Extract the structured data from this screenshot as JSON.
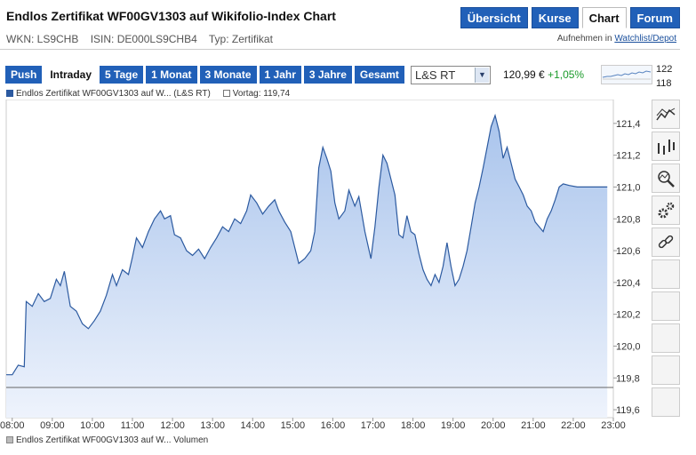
{
  "header": {
    "title": "Endlos Zertifikat WF00GV1303 auf Wikifolio-Index Chart",
    "wkn": "WKN: LS9CHB",
    "isin": "ISIN: DE000LS9CHB4",
    "typ": "Typ: Zertifikat",
    "tabs": [
      "Übersicht",
      "Kurse",
      "Chart",
      "Forum"
    ],
    "active_tab": "Chart",
    "watch_prefix": "Aufnehmen in",
    "watch_link": "Watchlist/Depot"
  },
  "toolbar": {
    "buttons": [
      "Push",
      "Intraday",
      "5 Tage",
      "1 Monat",
      "3 Monate",
      "1 Jahr",
      "3 Jahre",
      "Gesamt"
    ],
    "active": "Intraday",
    "exchange": "L&S RT",
    "price": "120,99 €",
    "change": "+1,05%",
    "mini_high": "122",
    "mini_low": "118"
  },
  "legend": {
    "series": "Endlos Zertifikat WF00GV1303 auf W... (L&S RT)",
    "prev": "Vortag: 119,74",
    "volume": "Endlos Zertifikat WF00GV1303 auf W... Volumen"
  },
  "colors": {
    "accent": "#2160b8",
    "line": "#2c5aa0",
    "fill_top": "#a9c4ec",
    "fill_bottom": "#eef3fc",
    "positive": "#1a9a2a"
  },
  "icons": [
    "line-chart-icon",
    "ohlc-chart-icon",
    "magnifier-icon",
    "settings-icon",
    "link-icon"
  ],
  "chart_data": {
    "type": "area",
    "x_ticks": [
      "08:00",
      "09:00",
      "10:00",
      "11:00",
      "12:00",
      "13:00",
      "14:00",
      "15:00",
      "16:00",
      "17:00",
      "18:00",
      "19:00",
      "20:00",
      "21:00",
      "22:00",
      "23:00"
    ],
    "y_ticks": [
      "119,6",
      "119,8",
      "120,0",
      "120,2",
      "120,4",
      "120,6",
      "120,8",
      "121,0",
      "121,2",
      "121,4"
    ],
    "ylim": [
      119.55,
      121.55
    ],
    "xlim": [
      7.85,
      23.0
    ],
    "prev_close": 119.74,
    "series": [
      {
        "name": "Endlos Zertifikat WF00GV1303 auf W... (L&S RT)",
        "points": [
          [
            7.85,
            119.82
          ],
          [
            8.0,
            119.82
          ],
          [
            8.15,
            119.88
          ],
          [
            8.3,
            119.87
          ],
          [
            8.35,
            120.28
          ],
          [
            8.5,
            120.25
          ],
          [
            8.65,
            120.33
          ],
          [
            8.8,
            120.28
          ],
          [
            8.95,
            120.3
          ],
          [
            9.1,
            120.42
          ],
          [
            9.2,
            120.38
          ],
          [
            9.3,
            120.47
          ],
          [
            9.45,
            120.25
          ],
          [
            9.6,
            120.22
          ],
          [
            9.75,
            120.14
          ],
          [
            9.9,
            120.11
          ],
          [
            10.05,
            120.16
          ],
          [
            10.2,
            120.22
          ],
          [
            10.35,
            120.32
          ],
          [
            10.5,
            120.45
          ],
          [
            10.6,
            120.38
          ],
          [
            10.75,
            120.48
          ],
          [
            10.9,
            120.45
          ],
          [
            11.0,
            120.56
          ],
          [
            11.1,
            120.68
          ],
          [
            11.25,
            120.62
          ],
          [
            11.4,
            120.72
          ],
          [
            11.55,
            120.8
          ],
          [
            11.7,
            120.85
          ],
          [
            11.8,
            120.8
          ],
          [
            11.95,
            120.82
          ],
          [
            12.05,
            120.7
          ],
          [
            12.2,
            120.68
          ],
          [
            12.35,
            120.6
          ],
          [
            12.5,
            120.57
          ],
          [
            12.65,
            120.61
          ],
          [
            12.8,
            120.55
          ],
          [
            12.95,
            120.62
          ],
          [
            13.1,
            120.68
          ],
          [
            13.25,
            120.75
          ],
          [
            13.4,
            120.72
          ],
          [
            13.55,
            120.8
          ],
          [
            13.7,
            120.77
          ],
          [
            13.85,
            120.85
          ],
          [
            13.95,
            120.95
          ],
          [
            14.1,
            120.9
          ],
          [
            14.25,
            120.83
          ],
          [
            14.4,
            120.88
          ],
          [
            14.55,
            120.92
          ],
          [
            14.65,
            120.85
          ],
          [
            14.8,
            120.78
          ],
          [
            14.95,
            120.72
          ],
          [
            15.05,
            120.62
          ],
          [
            15.15,
            120.52
          ],
          [
            15.3,
            120.55
          ],
          [
            15.45,
            120.6
          ],
          [
            15.55,
            120.72
          ],
          [
            15.65,
            121.12
          ],
          [
            15.75,
            121.25
          ],
          [
            15.85,
            121.18
          ],
          [
            15.95,
            121.1
          ],
          [
            16.05,
            120.9
          ],
          [
            16.15,
            120.8
          ],
          [
            16.3,
            120.85
          ],
          [
            16.4,
            120.98
          ],
          [
            16.55,
            120.88
          ],
          [
            16.65,
            120.94
          ],
          [
            16.8,
            120.72
          ],
          [
            16.95,
            120.55
          ],
          [
            17.05,
            120.75
          ],
          [
            17.15,
            121.0
          ],
          [
            17.25,
            121.2
          ],
          [
            17.35,
            121.15
          ],
          [
            17.45,
            121.05
          ],
          [
            17.55,
            120.95
          ],
          [
            17.65,
            120.7
          ],
          [
            17.75,
            120.68
          ],
          [
            17.85,
            120.82
          ],
          [
            17.95,
            120.72
          ],
          [
            18.05,
            120.7
          ],
          [
            18.15,
            120.58
          ],
          [
            18.25,
            120.48
          ],
          [
            18.35,
            120.42
          ],
          [
            18.45,
            120.38
          ],
          [
            18.55,
            120.45
          ],
          [
            18.65,
            120.4
          ],
          [
            18.75,
            120.5
          ],
          [
            18.85,
            120.65
          ],
          [
            18.95,
            120.5
          ],
          [
            19.05,
            120.38
          ],
          [
            19.15,
            120.42
          ],
          [
            19.25,
            120.5
          ],
          [
            19.35,
            120.6
          ],
          [
            19.45,
            120.75
          ],
          [
            19.55,
            120.9
          ],
          [
            19.65,
            121.0
          ],
          [
            19.75,
            121.12
          ],
          [
            19.85,
            121.25
          ],
          [
            19.95,
            121.38
          ],
          [
            20.05,
            121.45
          ],
          [
            20.15,
            121.35
          ],
          [
            20.25,
            121.18
          ],
          [
            20.35,
            121.25
          ],
          [
            20.45,
            121.15
          ],
          [
            20.55,
            121.05
          ],
          [
            20.65,
            121.0
          ],
          [
            20.75,
            120.95
          ],
          [
            20.85,
            120.88
          ],
          [
            20.95,
            120.85
          ],
          [
            21.05,
            120.78
          ],
          [
            21.15,
            120.75
          ],
          [
            21.25,
            120.72
          ],
          [
            21.35,
            120.8
          ],
          [
            21.45,
            120.85
          ],
          [
            21.55,
            120.92
          ],
          [
            21.65,
            121.0
          ],
          [
            21.75,
            121.02
          ],
          [
            21.9,
            121.01
          ],
          [
            22.1,
            121.0
          ],
          [
            22.4,
            121.0
          ],
          [
            22.7,
            121.0
          ],
          [
            22.85,
            121.0
          ]
        ]
      }
    ],
    "grid": false,
    "legend_position": "top-left"
  }
}
